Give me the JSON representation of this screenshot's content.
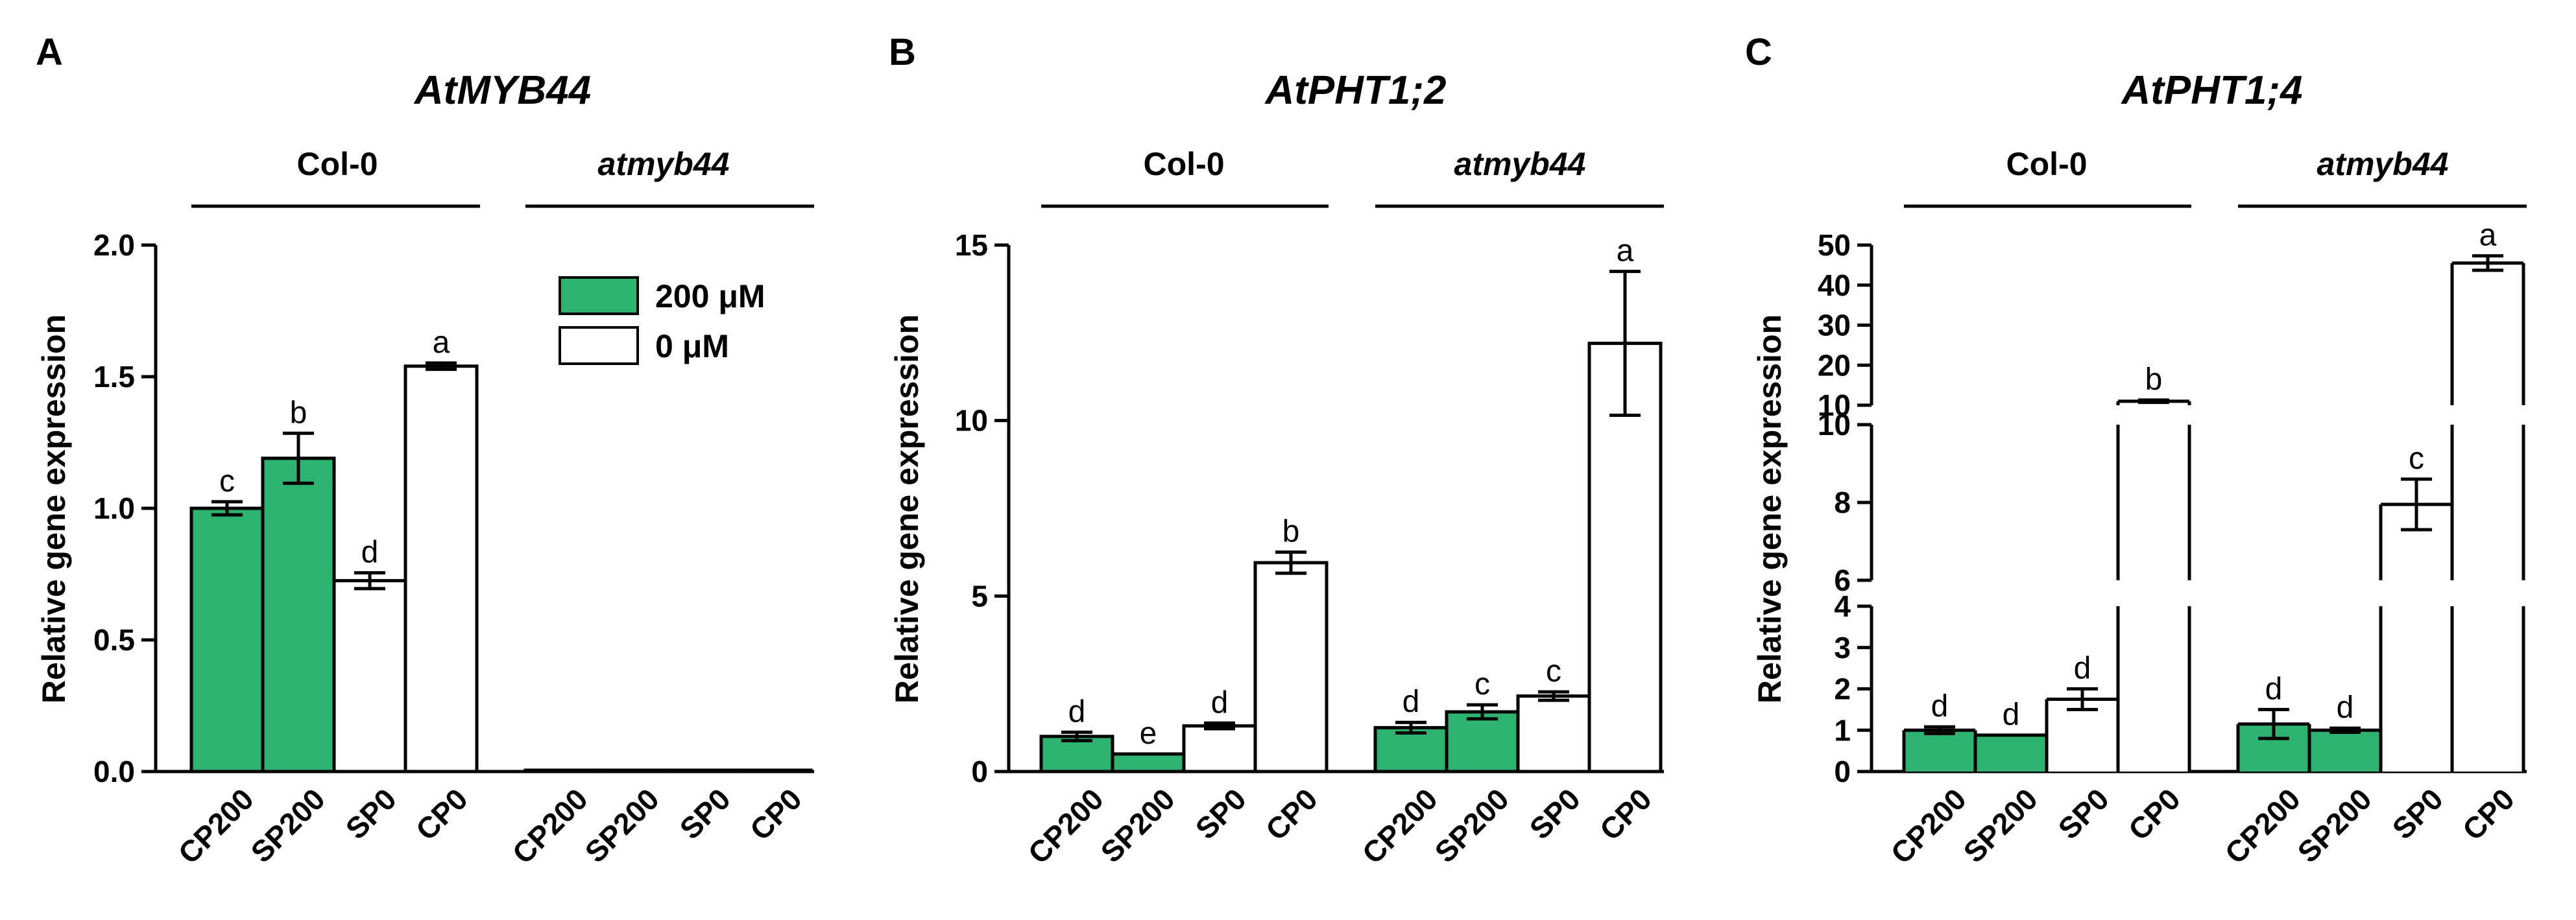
{
  "colors": {
    "treated": "#2db36f",
    "control": "#ffffff",
    "stroke": "#000000"
  },
  "legend": {
    "items": [
      {
        "label": "200 μM",
        "fill": "#2db36f"
      },
      {
        "label": "0 μM",
        "fill": "#ffffff"
      }
    ]
  },
  "chart_data": [
    {
      "type": "bar",
      "panel": "A",
      "title": "AtMYB44",
      "ylabel": "Relative gene expression",
      "ylim": [
        0,
        2.0
      ],
      "yticks": [
        "0.0",
        "0.5",
        "1.0",
        "1.5",
        "2.0"
      ],
      "groups": [
        "Col-0",
        "atmyb44"
      ],
      "categories": [
        "CP200",
        "SP200",
        "SP0",
        "CP0"
      ],
      "series": [
        {
          "group": "Col-0",
          "values": [
            1.0,
            1.19,
            0.725,
            1.54
          ],
          "errors": [
            0.025,
            0.095,
            0.03,
            0.012
          ],
          "sig": [
            "c",
            "b",
            "d",
            "a"
          ]
        },
        {
          "group": "atmyb44",
          "values": [
            0.005,
            0.005,
            0.005,
            0.005
          ],
          "errors": [
            0,
            0,
            0,
            0
          ],
          "sig": [
            "",
            "",
            "",
            ""
          ]
        }
      ]
    },
    {
      "type": "bar",
      "panel": "B",
      "title": "AtPHT1;2",
      "ylabel": "Relative gene expression",
      "ylim": [
        0,
        15
      ],
      "yticks": [
        "0",
        "5",
        "10",
        "15"
      ],
      "groups": [
        "Col-0",
        "atmyb44"
      ],
      "categories": [
        "CP200",
        "SP200",
        "SP0",
        "CP0"
      ],
      "series": [
        {
          "group": "Col-0",
          "values": [
            1.0,
            0.5,
            1.3,
            5.95
          ],
          "errors": [
            0.12,
            0.0,
            0.08,
            0.3
          ],
          "sig": [
            "d",
            "e",
            "d",
            "b"
          ]
        },
        {
          "group": "atmyb44",
          "values": [
            1.25,
            1.7,
            2.15,
            12.2
          ],
          "errors": [
            0.15,
            0.2,
            0.12,
            2.05
          ],
          "sig": [
            "d",
            "c",
            "c",
            "a"
          ]
        }
      ]
    },
    {
      "type": "bar",
      "panel": "C",
      "title": "AtPHT1;4",
      "ylabel": "Relative gene expression",
      "broken_axis": true,
      "segments": [
        {
          "range": [
            0,
            4
          ]
        },
        {
          "range": [
            6,
            10
          ]
        },
        {
          "range": [
            10,
            50
          ]
        }
      ],
      "yticks": [
        "0",
        "1",
        "2",
        "3",
        "4",
        "6",
        "8",
        "10",
        "10",
        "20",
        "30",
        "40",
        "50"
      ],
      "groups": [
        "Col-0",
        "atmyb44"
      ],
      "categories": [
        "CP200",
        "SP200",
        "SP0",
        "CP0"
      ],
      "series": [
        {
          "group": "Col-0",
          "values": [
            1.0,
            0.88,
            1.75,
            11.0
          ],
          "errors": [
            0.08,
            0.0,
            0.25,
            0.3
          ],
          "sig": [
            "d",
            "d",
            "d",
            "b"
          ]
        },
        {
          "group": "atmyb44",
          "values": [
            1.15,
            1.0,
            7.95,
            45.5
          ],
          "errors": [
            0.35,
            0.05,
            0.65,
            1.8
          ],
          "sig": [
            "d",
            "d",
            "c",
            "a"
          ]
        }
      ]
    }
  ]
}
